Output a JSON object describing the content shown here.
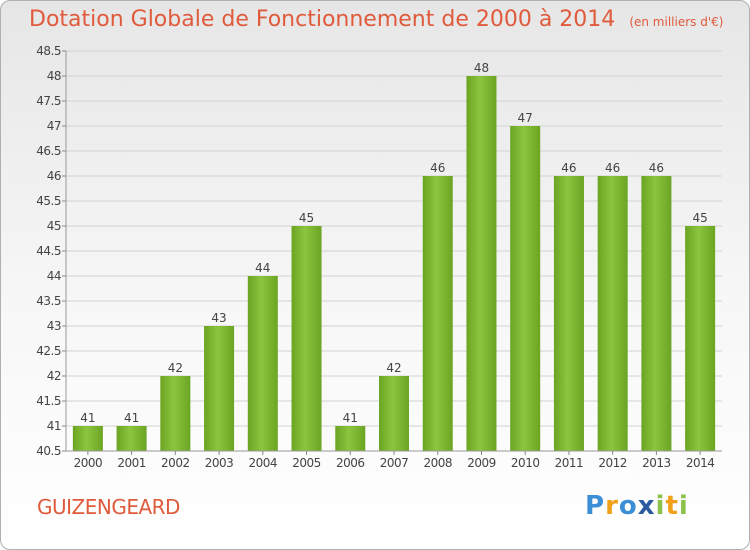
{
  "chart_data": {
    "type": "bar",
    "title": "Dotation Globale de Fonctionnement de 2000 à 2014",
    "subtitle": "(en milliers d'€)",
    "categories": [
      "2000",
      "2001",
      "2002",
      "2003",
      "2004",
      "2005",
      "2006",
      "2007",
      "2008",
      "2009",
      "2010",
      "2011",
      "2012",
      "2013",
      "2014"
    ],
    "values": [
      41,
      41,
      42,
      43,
      44,
      45,
      41,
      42,
      46,
      48,
      47,
      46,
      46,
      46,
      45
    ],
    "ylim": [
      40.5,
      48.5
    ],
    "yticks": [
      "40.5",
      "41",
      "41.5",
      "42",
      "42.5",
      "43",
      "43.5",
      "44",
      "44.5",
      "45",
      "45.5",
      "46",
      "46.5",
      "47",
      "47.5",
      "48",
      "48.5"
    ],
    "xlabel": "",
    "ylabel": "",
    "grid": true,
    "bar_color": "#7ab82e"
  },
  "footer": {
    "commune": "GUIZENGEARD"
  },
  "logo": {
    "letters": [
      "P",
      "r",
      "o",
      "x",
      "i",
      "t",
      "i"
    ],
    "colors": [
      "#3b8fd6",
      "#f0a019",
      "#3b8fd6",
      "#2c5aa0",
      "#8bc34a",
      "#f0a019",
      "#8bc34a"
    ]
  }
}
